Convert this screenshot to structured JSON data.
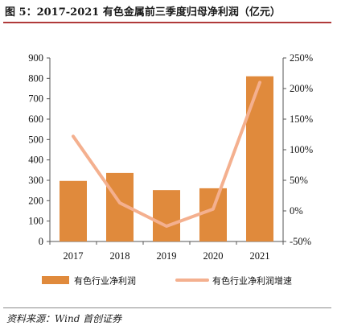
{
  "title": "图 5：2017-2021 有色金属前三季度归母净利润（亿元）",
  "source": "资料来源：Wind  首创证券",
  "chart_data": {
    "type": "bar+line",
    "categories": [
      "2017",
      "2018",
      "2019",
      "2020",
      "2021"
    ],
    "series": [
      {
        "name": "有色行业净利润",
        "type": "bar",
        "axis": "left",
        "color": "#e08a3c",
        "values": [
          297,
          336,
          252,
          261,
          810
        ]
      },
      {
        "name": "有色行业净利润增速",
        "type": "line",
        "axis": "right",
        "color": "#f4b08f",
        "values": [
          122,
          13,
          -25,
          3,
          210
        ]
      }
    ],
    "y_left": {
      "min": 0,
      "max": 900,
      "ticks": [
        "0",
        "100",
        "200",
        "300",
        "400",
        "500",
        "600",
        "700",
        "800",
        "900"
      ]
    },
    "y_right": {
      "min": -50,
      "max": 250,
      "ticks": [
        "-50%",
        "0%",
        "50%",
        "100%",
        "150%",
        "200%",
        "250%"
      ]
    },
    "legend_position": "bottom"
  }
}
